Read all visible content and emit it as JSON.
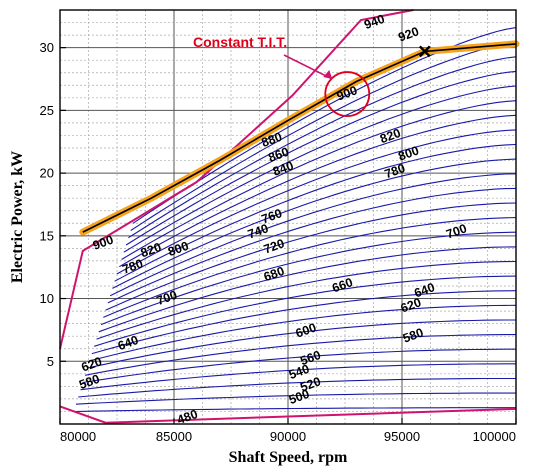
{
  "chart_data": {
    "type": "line",
    "title": "",
    "xlabel": "Shaft Speed, rpm",
    "ylabel": "Electric Power, kW",
    "xlim": [
      80000,
      100000
    ],
    "ylim": [
      0,
      33
    ],
    "x_ticks": [
      80000,
      85000,
      90000,
      95000,
      100000
    ],
    "x_tick_labels": [
      "80000",
      "85000",
      "90000",
      "95000",
      "100000"
    ],
    "y_ticks": [
      5,
      10,
      15,
      20,
      25,
      30
    ],
    "y_tick_labels": [
      "5",
      "10",
      "15",
      "20",
      "25",
      "30"
    ],
    "grid": true,
    "series_note": "Constant T.I.T. contour lines",
    "contour_labels": [
      {
        "text": "940",
        "x": 93800,
        "y": 32.0
      },
      {
        "text": "920",
        "x": 95300,
        "y": 31.0
      },
      {
        "text": "900",
        "x": 92600,
        "y": 26.3
      },
      {
        "text": "880",
        "x": 89300,
        "y": 22.6
      },
      {
        "text": "860",
        "x": 89600,
        "y": 21.4
      },
      {
        "text": "840",
        "x": 89800,
        "y": 20.3
      },
      {
        "text": "820",
        "x": 94500,
        "y": 22.9
      },
      {
        "text": "800",
        "x": 95300,
        "y": 21.5
      },
      {
        "text": "780",
        "x": 94700,
        "y": 20.1
      },
      {
        "text": "760",
        "x": 89300,
        "y": 16.5
      },
      {
        "text": "740",
        "x": 88700,
        "y": 15.3
      },
      {
        "text": "720",
        "x": 89400,
        "y": 14.1
      },
      {
        "text": "700",
        "x": 97400,
        "y": 15.3
      },
      {
        "text": "680",
        "x": 89400,
        "y": 11.9
      },
      {
        "text": "660",
        "x": 92400,
        "y": 11.0
      },
      {
        "text": "640",
        "x": 96000,
        "y": 10.6
      },
      {
        "text": "620",
        "x": 95400,
        "y": 9.4
      },
      {
        "text": "600",
        "x": 90800,
        "y": 7.4
      },
      {
        "text": "580",
        "x": 95500,
        "y": 7.0
      },
      {
        "text": "560",
        "x": 91000,
        "y": 5.2
      },
      {
        "text": "540",
        "x": 90500,
        "y": 4.1
      },
      {
        "text": "520",
        "x": 91000,
        "y": 3.1
      },
      {
        "text": "500",
        "x": 90500,
        "y": 2.1
      },
      {
        "text": "480",
        "x": 85600,
        "y": 0.5
      },
      {
        "text": "900",
        "x": 81900,
        "y": 14.4
      },
      {
        "text": "820",
        "x": 84000,
        "y": 13.8
      },
      {
        "text": "800",
        "x": 85200,
        "y": 13.9
      },
      {
        "text": "780",
        "x": 83200,
        "y": 12.5
      },
      {
        "text": "700",
        "x": 84700,
        "y": 10.0
      },
      {
        "text": "640",
        "x": 83000,
        "y": 6.4
      },
      {
        "text": "620",
        "x": 81400,
        "y": 4.7
      },
      {
        "text": "580",
        "x": 81300,
        "y": 3.3
      }
    ],
    "boundary_top": [
      [
        80000,
        6
      ],
      [
        81000,
        13.8
      ],
      [
        86000,
        19.3
      ],
      [
        90200,
        26.2
      ],
      [
        93200,
        32.2
      ],
      [
        95500,
        33.0
      ]
    ],
    "boundary_bottom": [
      [
        80000,
        1.4
      ],
      [
        82000,
        0.1
      ],
      [
        90000,
        0.6
      ],
      [
        100000,
        1.2
      ]
    ],
    "highlight_line": [
      [
        81000,
        15.3
      ],
      [
        84000,
        18.0
      ],
      [
        87000,
        21.0
      ],
      [
        90000,
        24.2
      ],
      [
        93000,
        27.3
      ],
      [
        96000,
        29.7
      ],
      [
        100000,
        30.3
      ]
    ],
    "marker": {
      "x": 96000,
      "y": 29.7
    },
    "annotation": {
      "text": "Constant T.I.T.",
      "color": "#e0001a"
    }
  }
}
